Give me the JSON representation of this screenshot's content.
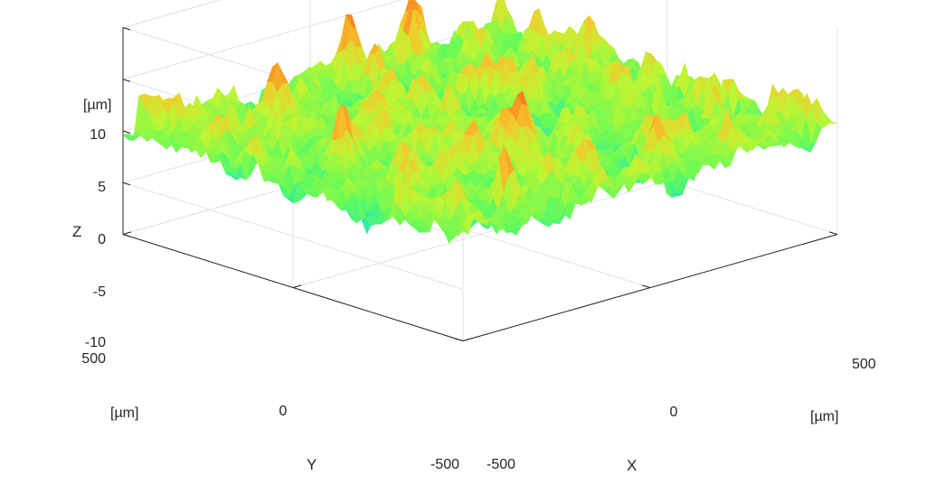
{
  "chart_data": {
    "type": "surface",
    "title": "",
    "xlabel": "X",
    "ylabel": "Y",
    "zlabel": "Z",
    "x_unit": "[µm]",
    "y_unit": "[µm]",
    "z_unit": "[µm]",
    "xlim": [
      -500,
      500
    ],
    "ylim": [
      -500,
      500
    ],
    "zlim": [
      -10,
      10
    ],
    "x_ticks": [
      "-500",
      "0",
      "500"
    ],
    "y_ticks": [
      "-500",
      "0",
      "500"
    ],
    "z_ticks": [
      "-10",
      "-5",
      "0",
      "5",
      "10"
    ],
    "z_range_observed": [
      -9,
      9
    ],
    "colormap": "turbo",
    "grid": true,
    "view": "3d-isometric",
    "surface_description": "random rough surface, peaks up to ~9 µm, valleys down to ~-9 µm"
  },
  "colors": {
    "low": "#3b3fc4",
    "mid_low": "#23c8d8",
    "mid": "#7cf64c",
    "mid_high": "#f5b52c",
    "high": "#c2310e"
  }
}
